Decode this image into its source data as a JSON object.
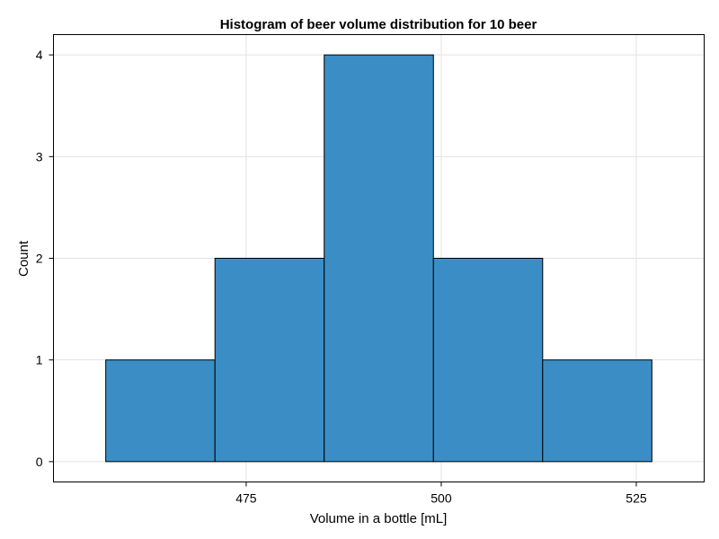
{
  "chart_data": {
    "type": "bar",
    "title": "Histogram of beer volume distribution for 10 beer",
    "xlabel": "Volume in a bottle [mL]",
    "ylabel": "Count",
    "bins": [
      {
        "start": 457,
        "end": 471,
        "count": 1
      },
      {
        "start": 471,
        "end": 485,
        "count": 2
      },
      {
        "start": 485,
        "end": 499,
        "count": 4
      },
      {
        "start": 499,
        "end": 513,
        "count": 2
      },
      {
        "start": 513,
        "end": 527,
        "count": 1
      }
    ],
    "xlim": [
      450.3,
      533.7
    ],
    "ylim": [
      -0.2,
      4.2
    ],
    "xticks": [
      475,
      500,
      525
    ],
    "yticks": [
      0,
      1,
      2,
      3,
      4
    ],
    "grid": true,
    "bar_color": "#3b8ec5",
    "bar_edge_color": "#000000"
  }
}
